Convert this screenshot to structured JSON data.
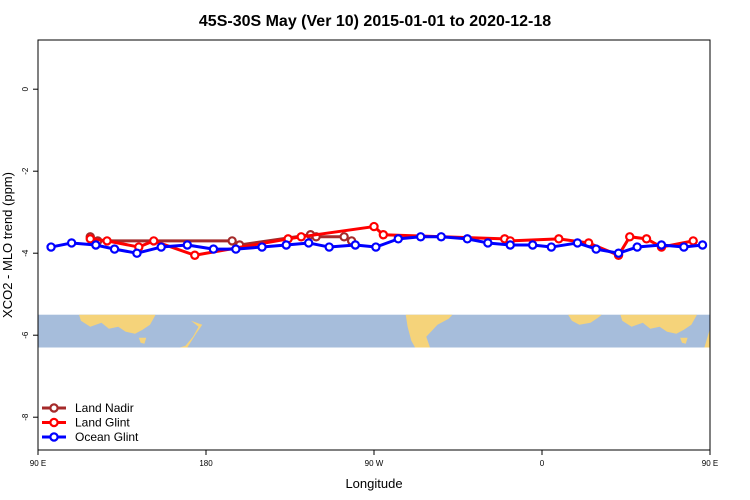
{
  "chart_data": {
    "type": "line",
    "title": "45S-30S May (Ver 10)   2015-01-01 to 2020-12-18",
    "xlabel": "Longitude",
    "ylabel": "XCO2 - MLO trend (ppm)",
    "xlim": [
      90,
      450
    ],
    "ylim": [
      -8.8,
      1.2
    ],
    "grid": false,
    "legend_position": "bottom-left",
    "x_ticks": [
      {
        "value": 90,
        "label": "90 E"
      },
      {
        "value": 180,
        "label": "180"
      },
      {
        "value": 270,
        "label": "90 W"
      },
      {
        "value": 360,
        "label": "0"
      },
      {
        "value": 450,
        "label": "90 E"
      },
      {
        "value": 540,
        "label": "180"
      }
    ],
    "y_ticks": [
      {
        "value": 0,
        "label": "0"
      },
      {
        "value": -2,
        "label": "-2"
      },
      {
        "value": -4,
        "label": "-4"
      },
      {
        "value": -6,
        "label": "-6"
      },
      {
        "value": -8,
        "label": "-8"
      }
    ],
    "map_strip": {
      "y_top": -5.5,
      "y_bottom": -6.3,
      "ocean_color": "#a6bddb",
      "land_color": "#f5d37a"
    },
    "series": [
      {
        "name": "Land Nadir",
        "color": "#a52a2a",
        "x": [
          118,
          122,
          194,
          198,
          236,
          239,
          254,
          258
        ],
        "y": [
          -3.6,
          -3.7,
          -3.7,
          -3.8,
          -3.55,
          -3.6,
          -3.6,
          -3.7
        ]
      },
      {
        "name": "Land Glint",
        "color": "#ff0000",
        "x": [
          118,
          127,
          144,
          152,
          174,
          224,
          231,
          270,
          275,
          340,
          343,
          369,
          385,
          401,
          407,
          416,
          424,
          441
        ],
        "y": [
          -3.65,
          -3.7,
          -3.85,
          -3.7,
          -4.05,
          -3.65,
          -3.6,
          -3.35,
          -3.55,
          -3.65,
          -3.7,
          -3.65,
          -3.75,
          -4.05,
          -3.6,
          -3.65,
          -3.85,
          -3.7
        ]
      },
      {
        "name": "Ocean Glint",
        "color": "#0000ff",
        "x": [
          97,
          108,
          121,
          131,
          143,
          156,
          170,
          184,
          196,
          210,
          223,
          235,
          246,
          260,
          271,
          283,
          295,
          306,
          320,
          331,
          343,
          355,
          365,
          379,
          389,
          401,
          411,
          424,
          436,
          446
        ],
        "y": [
          -3.85,
          -3.75,
          -3.8,
          -3.9,
          -4.0,
          -3.85,
          -3.8,
          -3.9,
          -3.9,
          -3.85,
          -3.8,
          -3.75,
          -3.85,
          -3.8,
          -3.85,
          -3.65,
          -3.6,
          -3.6,
          -3.65,
          -3.75,
          -3.8,
          -3.8,
          -3.85,
          -3.75,
          -3.9,
          -4.0,
          -3.85,
          -3.8,
          -3.85,
          -3.8
        ]
      }
    ]
  }
}
